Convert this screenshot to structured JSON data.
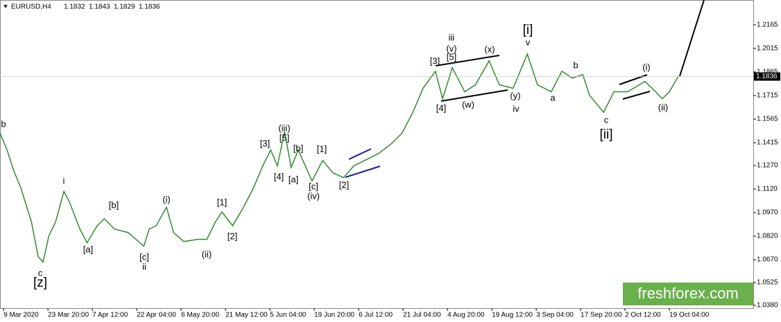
{
  "chart_data": {
    "type": "line",
    "symbol": "EURUSD,H4",
    "ohlc": [
      1.1832,
      1.1843,
      1.1829,
      1.1836
    ],
    "watermark": "freshforex.com",
    "color": "#2e8b2e",
    "xlim": [
      -0.08,
      16.89
    ],
    "ylim": [
      1.0362,
      1.2323
    ],
    "xticks": [
      {
        "value": 0,
        "label": "9 Mar 2020"
      },
      {
        "value": 1,
        "label": "23 Mar 20:00"
      },
      {
        "value": 2,
        "label": "7 Apr 12:00"
      },
      {
        "value": 3,
        "label": "22 Apr 04:00"
      },
      {
        "value": 4,
        "label": "6 May 20:00"
      },
      {
        "value": 5,
        "label": "21 May 12:00"
      },
      {
        "value": 6,
        "label": "5 Jun 04:00"
      },
      {
        "value": 7,
        "label": "19 Jun 20:00"
      },
      {
        "value": 8,
        "label": "6 Jul 12:00"
      },
      {
        "value": 9,
        "label": "21 Jul 04:00"
      },
      {
        "value": 10,
        "label": "4 Aug 20:00"
      },
      {
        "value": 11,
        "label": "19 Aug 12:00"
      },
      {
        "value": 12,
        "label": "3 Sep 04:00"
      },
      {
        "value": 13,
        "label": "17 Sep 20:00"
      },
      {
        "value": 14,
        "label": "2 Oct 12:00"
      },
      {
        "value": 15,
        "label": "19 Oct 04:00"
      }
    ],
    "yticks": [
      1.2165,
      1.2015,
      1.1865,
      1.1715,
      1.1565,
      1.1415,
      {
        "value": 1.127,
        "label": "1.1270"
      },
      {
        "value": 1.112,
        "label": "1.1120"
      },
      {
        "value": 1.097,
        "label": "1.0970"
      },
      {
        "value": 1.082,
        "label": "1.0820"
      },
      {
        "value": 1.067,
        "label": "1.0670"
      },
      1.0525,
      {
        "value": 1.038,
        "label": "1.0380"
      }
    ],
    "x": [
      -0.08,
      0.08,
      0.23,
      0.39,
      0.63,
      0.78,
      0.89,
      1.02,
      1.17,
      1.36,
      1.48,
      1.72,
      1.88,
      2.11,
      2.27,
      2.5,
      2.81,
      3.16,
      3.28,
      3.44,
      3.67,
      3.83,
      4.06,
      4.38,
      4.58,
      4.77,
      4.92,
      5.16,
      5.39,
      5.63,
      5.86,
      6.02,
      6.17,
      6.33,
      6.48,
      6.64,
      6.95,
      7.19,
      7.42,
      7.66,
      7.89,
      8.2,
      8.44,
      8.75,
      8.98,
      9.22,
      9.45,
      9.73,
      9.89,
      10.11,
      10.39,
      10.63,
      10.94,
      11.17,
      11.48,
      11.8,
      12.03,
      12.34,
      12.58,
      12.81,
      13.05,
      13.2,
      13.52,
      13.75,
      14.06,
      14.45,
      14.69,
      14.84,
      15,
      15.2
    ],
    "values": [
      1.1477,
      1.1368,
      1.1237,
      1.1127,
      1.0909,
      1.069,
      1.0655,
      1.0821,
      1.0909,
      1.1105,
      1.104,
      1.0865,
      1.0778,
      1.0887,
      1.0931,
      1.0865,
      1.0843,
      1.0756,
      1.0865,
      1.0887,
      1.1005,
      1.0843,
      1.0786,
      1.08,
      1.08,
      1.0909,
      1.0974,
      1.0887,
      1.0996,
      1.1127,
      1.128,
      1.1368,
      1.1267,
      1.1486,
      1.1258,
      1.1368,
      1.1171,
      1.1302,
      1.1223,
      1.1193,
      1.1267,
      1.1311,
      1.1345,
      1.1411,
      1.1477,
      1.1608,
      1.1761,
      1.187,
      1.1695,
      1.1892,
      1.1739,
      1.1783,
      1.1936,
      1.1783,
      1.1761,
      1.1979,
      1.1783,
      1.1739,
      1.187,
      1.1826,
      1.1848,
      1.1717,
      1.1608,
      1.1739,
      1.1739,
      1.1805,
      1.1739,
      1.1695,
      1.1739,
      1.1836
    ],
    "annotations": [
      {
        "text": "b",
        "color": "#1010c0"
      },
      {
        "text": "c",
        "color": "#1010c0"
      },
      {
        "text": "[z]",
        "color": "#22cc22"
      },
      {
        "text": "i",
        "color": "#1010c0"
      },
      {
        "text": "[a]",
        "color": "#2e6b2e"
      },
      {
        "text": "[b]",
        "color": "#2e6b2e"
      },
      {
        "text": "(i)",
        "color": "#dd2222"
      },
      {
        "text": "[c]",
        "color": "#2e6b2e"
      },
      {
        "text": "ii",
        "color": "#1010c0"
      },
      {
        "text": "(ii)",
        "color": "#dd2222"
      },
      {
        "text": "[1]",
        "color": "#2e6b2e"
      },
      {
        "text": "[2]",
        "color": "#2e6b2e"
      },
      {
        "text": "[3]",
        "color": "#2e6b2e"
      },
      {
        "text": "(iii)",
        "color": "#dd2222"
      },
      {
        "text": "[5]",
        "color": "#2e6b2e"
      },
      {
        "text": "[4]",
        "color": "#2e6b2e"
      },
      {
        "text": "[b]",
        "color": "#2e6b2e"
      },
      {
        "text": "[a]",
        "color": "#2e6b2e"
      },
      {
        "text": "[c]",
        "color": "#2e6b2e"
      },
      {
        "text": "(iv)",
        "color": "#dd2222"
      },
      {
        "text": "[1]",
        "color": "#2e6b2e"
      },
      {
        "text": "[2]",
        "color": "#2e6b2e"
      },
      {
        "text": "[3]",
        "color": "#2e6b2e"
      },
      {
        "text": "(v)",
        "color": "#dd2222"
      },
      {
        "text": "[5]",
        "color": "#2e6b2e"
      },
      {
        "text": "iii",
        "color": "#1010c0"
      },
      {
        "text": "(x)",
        "color": "#dd2222"
      },
      {
        "text": "[i]",
        "color": "#22cc22"
      },
      {
        "text": "v",
        "color": "#1010c0"
      },
      {
        "text": "[4]",
        "color": "#2e6b2e"
      },
      {
        "text": "(w)",
        "color": "#dd2222"
      },
      {
        "text": "(y)",
        "color": "#dd2222"
      },
      {
        "text": "iv",
        "color": "#1010c0"
      },
      {
        "text": "a",
        "color": "#1010c0"
      },
      {
        "text": "b",
        "color": "#1010c0"
      },
      {
        "text": "c",
        "color": "#1010c0"
      },
      {
        "text": "[ii]",
        "color": "#22cc22"
      },
      {
        "text": "(i)",
        "color": "#dd2222"
      },
      {
        "text": "(ii)",
        "color": "#dd2222"
      }
    ]
  }
}
